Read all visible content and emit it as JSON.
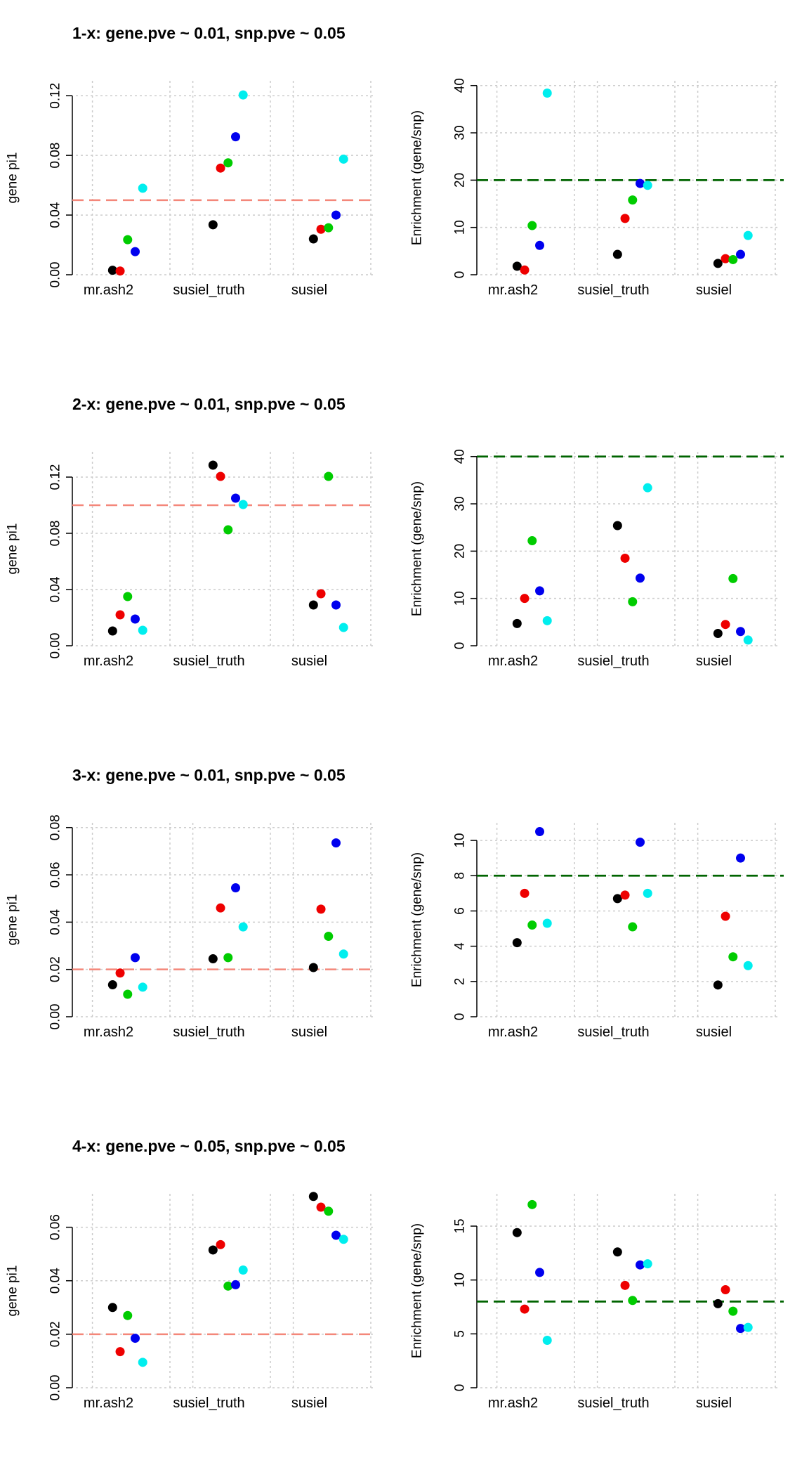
{
  "colors": {
    "series": [
      "#000000",
      "#ee0000",
      "#00cc00",
      "#0000ee",
      "#00eeee"
    ],
    "pi_ref_line": "#f4877a",
    "enrich_ref_line": "#006400",
    "grid": "#cccccc"
  },
  "chart_data": [
    {
      "type": "scatter",
      "title": "1-x: gene.pve ~ 0.01, snp.pve ~ 0.05",
      "ylabel": "gene pi1",
      "categories": [
        "mr.ash2",
        "susiel_truth",
        "susiel"
      ],
      "ylim": [
        0,
        0.13
      ],
      "yticks": [
        "0.00",
        "0.04",
        "0.08",
        "0.12"
      ],
      "reference_line": 0.05,
      "reference_style": "pi",
      "series_values": [
        [
          0.003,
          0.0335,
          0.024
        ],
        [
          0.0025,
          0.0715,
          0.0305
        ],
        [
          0.0235,
          0.075,
          0.0315
        ],
        [
          0.0155,
          0.0925,
          0.04
        ],
        [
          0.058,
          0.1205,
          0.0775
        ]
      ]
    },
    {
      "type": "scatter",
      "title": "",
      "ylabel": "Enrichment (gene/snp)",
      "categories": [
        "mr.ash2",
        "susiel_truth",
        "susiel"
      ],
      "ylim": [
        0,
        41
      ],
      "yticks": [
        "0",
        "10",
        "20",
        "30",
        "40"
      ],
      "reference_line": 20,
      "reference_style": "enrich",
      "series_values": [
        [
          1.8,
          4.3,
          2.4
        ],
        [
          1.0,
          11.9,
          3.4
        ],
        [
          10.4,
          15.8,
          3.2
        ],
        [
          6.2,
          19.3,
          4.3
        ],
        [
          38.4,
          18.9,
          8.3
        ]
      ]
    },
    {
      "type": "scatter",
      "title": "2-x: gene.pve ~ 0.01, snp.pve ~ 0.05",
      "ylabel": "gene pi1",
      "categories": [
        "mr.ash2",
        "susiel_truth",
        "susiel"
      ],
      "ylim": [
        0,
        0.138
      ],
      "yticks": [
        "0.00",
        "0.04",
        "0.08",
        "0.12"
      ],
      "reference_line": 0.1,
      "reference_style": "pi",
      "series_values": [
        [
          0.0105,
          0.1285,
          0.029
        ],
        [
          0.022,
          0.1205,
          0.037
        ],
        [
          0.035,
          0.0825,
          0.1205
        ],
        [
          0.019,
          0.105,
          0.029
        ],
        [
          0.011,
          0.1005,
          0.013
        ]
      ]
    },
    {
      "type": "scatter",
      "title": "",
      "ylabel": "Enrichment (gene/snp)",
      "categories": [
        "mr.ash2",
        "susiel_truth",
        "susiel"
      ],
      "ylim": [
        0,
        41
      ],
      "yticks": [
        "0",
        "10",
        "20",
        "30",
        "40"
      ],
      "reference_line": 40,
      "reference_style": "enrich",
      "series_values": [
        [
          4.7,
          25.4,
          2.6
        ],
        [
          10.0,
          18.5,
          4.5
        ],
        [
          22.2,
          9.3,
          14.2
        ],
        [
          11.6,
          14.3,
          3.0
        ],
        [
          5.3,
          33.4,
          1.2
        ]
      ]
    },
    {
      "type": "scatter",
      "title": "3-x: gene.pve ~ 0.01, snp.pve ~ 0.05",
      "ylabel": "gene pi1",
      "categories": [
        "mr.ash2",
        "susiel_truth",
        "susiel"
      ],
      "ylim": [
        0,
        0.082
      ],
      "yticks": [
        "0.00",
        "0.02",
        "0.04",
        "0.06",
        "0.08"
      ],
      "reference_line": 0.02,
      "reference_style": "pi",
      "series_values": [
        [
          0.0135,
          0.0245,
          0.0208
        ],
        [
          0.0185,
          0.046,
          0.0455
        ],
        [
          0.0095,
          0.025,
          0.034
        ],
        [
          0.025,
          0.0545,
          0.0735
        ],
        [
          0.0125,
          0.038,
          0.0265
        ]
      ]
    },
    {
      "type": "scatter",
      "title": "",
      "ylabel": "Enrichment (gene/snp)",
      "categories": [
        "mr.ash2",
        "susiel_truth",
        "susiel"
      ],
      "ylim": [
        0,
        11
      ],
      "yticks": [
        "0",
        "2",
        "4",
        "6",
        "8",
        "10"
      ],
      "reference_line": 8,
      "reference_style": "enrich",
      "series_values": [
        [
          4.2,
          6.7,
          1.8
        ],
        [
          7.0,
          6.9,
          5.7
        ],
        [
          5.2,
          5.1,
          3.4
        ],
        [
          10.5,
          9.9,
          9.0
        ],
        [
          5.3,
          7.0,
          2.9
        ]
      ]
    },
    {
      "type": "scatter",
      "title": "4-x: gene.pve ~ 0.05, snp.pve ~ 0.05",
      "ylabel": "gene pi1",
      "categories": [
        "mr.ash2",
        "susiel_truth",
        "susiel"
      ],
      "ylim": [
        0,
        0.0725
      ],
      "yticks": [
        "0.00",
        "0.02",
        "0.04",
        "0.06"
      ],
      "reference_line": 0.02,
      "reference_style": "pi",
      "series_values": [
        [
          0.03,
          0.0515,
          0.0715
        ],
        [
          0.0135,
          0.0535,
          0.0675
        ],
        [
          0.027,
          0.038,
          0.066
        ],
        [
          0.0185,
          0.0385,
          0.057
        ],
        [
          0.0095,
          0.044,
          0.0555
        ]
      ]
    },
    {
      "type": "scatter",
      "title": "",
      "ylabel": "Enrichment (gene/snp)",
      "categories": [
        "mr.ash2",
        "susiel_truth",
        "susiel"
      ],
      "ylim": [
        0,
        18
      ],
      "yticks": [
        "0",
        "5",
        "10",
        "15"
      ],
      "reference_line": 8,
      "reference_style": "enrich",
      "series_values": [
        [
          14.4,
          12.6,
          7.8
        ],
        [
          7.3,
          9.5,
          9.1
        ],
        [
          17.0,
          8.1,
          7.1
        ],
        [
          10.7,
          11.4,
          5.5
        ],
        [
          4.4,
          11.5,
          5.6
        ]
      ]
    }
  ]
}
